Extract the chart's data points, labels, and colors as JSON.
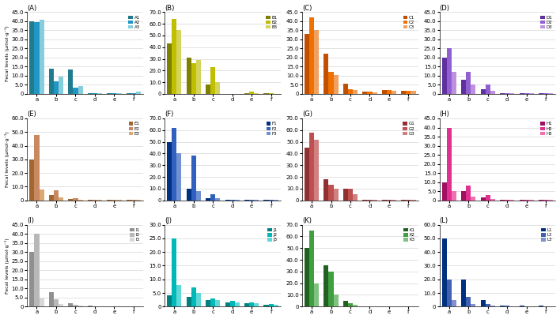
{
  "panels": [
    {
      "label": "(A)",
      "series_labels": [
        "A1",
        "A2",
        "A3"
      ],
      "colors": [
        "#1f7b8e",
        "#2196C4",
        "#87CEDC"
      ],
      "ylim": [
        0,
        45.0
      ],
      "yticks": [
        0,
        5.0,
        10.0,
        15.0,
        20.0,
        25.0,
        30.0,
        35.0,
        40.0,
        45.0
      ],
      "xticks": [
        "a",
        "b",
        "c",
        "d",
        "e",
        "f"
      ],
      "data": [
        [
          40.0,
          14.0,
          13.5,
          0.5,
          0.3,
          0.5
        ],
        [
          39.5,
          7.0,
          3.5,
          0.4,
          0.2,
          0.4
        ],
        [
          41.0,
          9.5,
          4.5,
          0.5,
          0.3,
          1.2
        ]
      ]
    },
    {
      "label": "(B)",
      "series_labels": [
        "B1",
        "B2",
        "B3"
      ],
      "colors": [
        "#7f7f00",
        "#bfbf00",
        "#d4d45c"
      ],
      "ylim": [
        0,
        70.0
      ],
      "yticks": [
        0,
        10.0,
        20.0,
        30.0,
        40.0,
        50.0,
        60.0,
        70.0
      ],
      "xticks": [
        "a",
        "b",
        "c",
        "d",
        "e",
        "f"
      ],
      "data": [
        [
          43.0,
          31.0,
          8.0,
          0.3,
          0.5,
          0.5
        ],
        [
          64.0,
          26.0,
          23.0,
          0.3,
          2.0,
          0.5
        ],
        [
          55.0,
          29.0,
          10.0,
          0.3,
          0.5,
          0.3
        ]
      ]
    },
    {
      "label": "(C)",
      "series_labels": [
        "C1",
        "C2",
        "C3"
      ],
      "colors": [
        "#c05000",
        "#f07000",
        "#f0a060"
      ],
      "ylim": [
        0,
        45.0
      ],
      "yticks": [
        0,
        5.0,
        10.0,
        15.0,
        20.0,
        25.0,
        30.0,
        35.0,
        40.0,
        45.0
      ],
      "xticks": [
        "a",
        "b",
        "c",
        "d",
        "e",
        "f"
      ],
      "data": [
        [
          33.0,
          22.0,
          5.5,
          1.2,
          2.0,
          1.5
        ],
        [
          42.0,
          12.0,
          2.5,
          1.2,
          2.0,
          1.8
        ],
        [
          35.0,
          10.5,
          2.0,
          1.0,
          1.8,
          1.8
        ]
      ]
    },
    {
      "label": "(D)",
      "series_labels": [
        "D1",
        "D2",
        "D3"
      ],
      "colors": [
        "#6030a0",
        "#9060d0",
        "#c090e0"
      ],
      "ylim": [
        0,
        45.0
      ],
      "yticks": [
        0,
        5.0,
        10.0,
        15.0,
        20.0,
        25.0,
        30.0,
        35.0,
        40.0,
        45.0
      ],
      "xticks": [
        "a",
        "b",
        "c",
        "d",
        "e",
        "f"
      ],
      "data": [
        [
          20.0,
          8.0,
          2.5,
          0.5,
          0.3,
          0.3
        ],
        [
          25.0,
          12.0,
          5.0,
          0.5,
          0.3,
          0.3
        ],
        [
          12.0,
          5.0,
          1.5,
          0.3,
          0.3,
          0.3
        ]
      ]
    },
    {
      "label": "(E)",
      "series_labels": [
        "E1",
        "E2",
        "E3"
      ],
      "colors": [
        "#a06830",
        "#c88860",
        "#daa870"
      ],
      "ylim": [
        0,
        60.0
      ],
      "yticks": [
        0,
        10.0,
        20.0,
        30.0,
        40.0,
        50.0,
        60.0
      ],
      "xticks": [
        "a",
        "b",
        "c",
        "d",
        "e",
        "f"
      ],
      "data": [
        [
          30.0,
          4.0,
          1.0,
          0.3,
          0.3,
          0.3
        ],
        [
          48.0,
          7.5,
          1.5,
          0.3,
          0.3,
          0.3
        ],
        [
          8.0,
          2.0,
          0.5,
          0.2,
          0.2,
          0.2
        ]
      ]
    },
    {
      "label": "(F)",
      "series_labels": [
        "F1",
        "F2",
        "F3"
      ],
      "colors": [
        "#003080",
        "#3060c0",
        "#7090d0"
      ],
      "ylim": [
        0,
        70.0
      ],
      "yticks": [
        0,
        10.0,
        20.0,
        30.0,
        40.0,
        50.0,
        60.0,
        70.0
      ],
      "xticks": [
        "a",
        "b",
        "c",
        "d",
        "e",
        "f"
      ],
      "data": [
        [
          50.0,
          10.0,
          2.0,
          0.5,
          0.3,
          0.3
        ],
        [
          62.0,
          38.0,
          5.0,
          0.5,
          0.5,
          0.5
        ],
        [
          40.0,
          8.0,
          1.5,
          0.3,
          0.3,
          0.3
        ]
      ]
    },
    {
      "label": "(G)",
      "series_labels": [
        "G1",
        "G2",
        "G3"
      ],
      "colors": [
        "#903030",
        "#c05050",
        "#d08080"
      ],
      "ylim": [
        0,
        70.0
      ],
      "yticks": [
        0,
        10.0,
        20.0,
        30.0,
        40.0,
        50.0,
        60.0,
        70.0
      ],
      "xticks": [
        "a",
        "b",
        "c",
        "d",
        "e",
        "f"
      ],
      "data": [
        [
          45.0,
          18.0,
          10.0,
          0.5,
          0.5,
          0.3
        ],
        [
          58.0,
          13.0,
          10.0,
          0.5,
          0.5,
          0.3
        ],
        [
          52.0,
          10.0,
          5.0,
          0.5,
          0.3,
          0.3
        ]
      ]
    },
    {
      "label": "(H)",
      "series_labels": [
        "H1",
        "H2",
        "H3"
      ],
      "colors": [
        "#a01060",
        "#e03090",
        "#f070b0"
      ],
      "ylim": [
        0,
        45.0
      ],
      "yticks": [
        0,
        5.0,
        10.0,
        15.0,
        20.0,
        25.0,
        30.0,
        35.0,
        40.0,
        45.0
      ],
      "xticks": [
        "a",
        "b",
        "c",
        "d",
        "e",
        "f"
      ],
      "data": [
        [
          10.0,
          5.0,
          1.5,
          0.3,
          0.3,
          0.3
        ],
        [
          40.0,
          8.0,
          3.0,
          0.3,
          0.3,
          0.3
        ],
        [
          5.0,
          2.0,
          0.5,
          0.2,
          0.2,
          0.2
        ]
      ]
    },
    {
      "label": "(I)",
      "series_labels": [
        "I1",
        "I2",
        "I3"
      ],
      "colors": [
        "#909090",
        "#b8b8b8",
        "#d8d8d8"
      ],
      "ylim": [
        0,
        45.0
      ],
      "yticks": [
        0,
        5.0,
        10.0,
        15.0,
        20.0,
        25.0,
        30.0,
        35.0,
        40.0,
        45.0
      ],
      "xticks": [
        "a",
        "b",
        "c",
        "d",
        "e",
        "f"
      ],
      "data": [
        [
          30.0,
          8.0,
          2.0,
          0.5,
          0.3,
          0.3
        ],
        [
          40.0,
          4.0,
          1.0,
          0.3,
          0.2,
          0.2
        ],
        [
          5.0,
          1.5,
          0.5,
          0.2,
          0.2,
          0.2
        ]
      ]
    },
    {
      "label": "(J)",
      "series_labels": [
        "J1",
        "J2",
        "J3"
      ],
      "colors": [
        "#008080",
        "#00b8b8",
        "#60d8d8"
      ],
      "ylim": [
        0,
        30.0
      ],
      "yticks": [
        0,
        5.0,
        10.0,
        15.0,
        20.0,
        25.0,
        30.0
      ],
      "xticks": [
        "a",
        "b",
        "c",
        "d",
        "e",
        "f"
      ],
      "data": [
        [
          4.0,
          3.5,
          2.5,
          1.5,
          1.2,
          0.8
        ],
        [
          25.0,
          7.0,
          3.0,
          2.0,
          1.5,
          1.0
        ],
        [
          8.0,
          5.0,
          2.5,
          1.5,
          1.2,
          0.8
        ]
      ]
    },
    {
      "label": "(K)",
      "series_labels": [
        "K1",
        "K2",
        "K3"
      ],
      "colors": [
        "#206020",
        "#40a040",
        "#80c080"
      ],
      "ylim": [
        0,
        70.0
      ],
      "yticks": [
        0,
        10.0,
        20.0,
        30.0,
        40.0,
        50.0,
        60.0,
        70.0
      ],
      "xticks": [
        "a",
        "b",
        "c",
        "d",
        "e",
        "f"
      ],
      "data": [
        [
          50.0,
          35.0,
          5.0,
          0.5,
          0.5,
          0.3
        ],
        [
          65.0,
          30.0,
          3.0,
          0.5,
          0.3,
          0.3
        ],
        [
          20.0,
          10.0,
          1.5,
          0.3,
          0.3,
          0.3
        ]
      ]
    },
    {
      "label": "(L)",
      "series_labels": [
        "L1",
        "L2",
        "L3"
      ],
      "colors": [
        "#003080",
        "#4060b0",
        "#8090d0"
      ],
      "ylim": [
        0,
        60.0
      ],
      "yticks": [
        0,
        10.0,
        20.0,
        30.0,
        40.0,
        50.0,
        60.0
      ],
      "xticks": [
        "a",
        "b",
        "c",
        "d",
        "e",
        "f"
      ],
      "data": [
        [
          50.0,
          20.0,
          5.0,
          1.0,
          0.5,
          0.5
        ],
        [
          20.0,
          7.0,
          2.0,
          0.5,
          0.3,
          0.3
        ],
        [
          5.0,
          2.0,
          0.5,
          0.3,
          0.2,
          0.2
        ]
      ]
    }
  ],
  "ylabel": "Fecal levels (μmol·g⁻¹)",
  "bar_width": 0.25,
  "figure_bg": "#ffffff"
}
